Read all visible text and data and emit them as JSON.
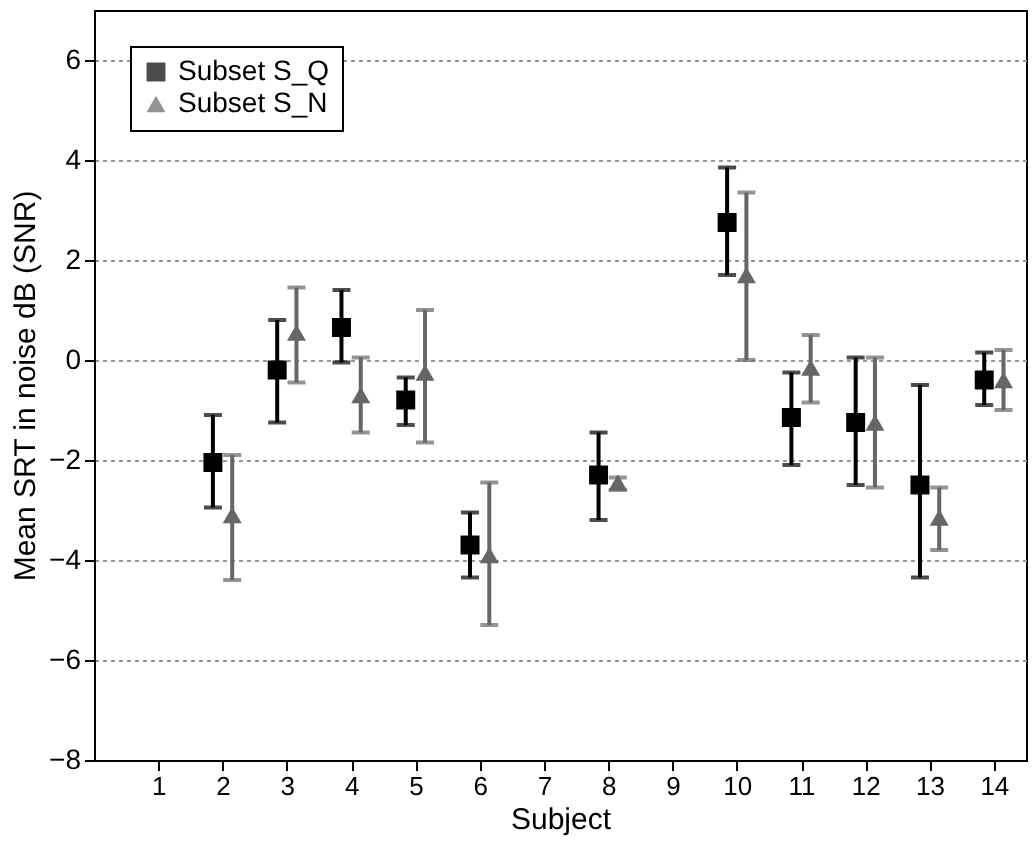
{
  "chart_data": {
    "type": "scatter",
    "xlabel": "Subject",
    "ylabel": "Mean SRT in noise dB (SNR)",
    "xlim": [
      0,
      14.5
    ],
    "xticks": [
      1,
      2,
      3,
      4,
      5,
      6,
      7,
      8,
      9,
      10,
      11,
      12,
      13,
      14
    ],
    "ylim": [
      -8,
      7
    ],
    "yticks": [
      -8,
      -6,
      -4,
      -2,
      0,
      2,
      4,
      6
    ],
    "grid": "y",
    "legend": "top left",
    "series": [
      {
        "name": "Subset S_Q",
        "color": "#000000",
        "marker": "square",
        "x": [
          1.85,
          2.85,
          3.85,
          4.85,
          5.85,
          7.85,
          9.85,
          10.85,
          11.85,
          12.85,
          13.85
        ],
        "values": [
          -2.05,
          -0.2,
          0.65,
          -0.8,
          -3.7,
          -2.3,
          2.75,
          -1.15,
          -1.25,
          -2.5,
          -0.4
        ],
        "errors": [
          [
            -2.95,
            -1.1
          ],
          [
            -1.25,
            0.8
          ],
          [
            -0.05,
            1.4
          ],
          [
            -1.3,
            -0.35
          ],
          [
            -4.35,
            -3.05
          ],
          [
            -3.2,
            -1.45
          ],
          [
            1.7,
            3.85
          ],
          [
            -2.1,
            -0.25
          ],
          [
            -2.5,
            0.05
          ],
          [
            -4.35,
            -0.5
          ],
          [
            -0.9,
            0.15
          ]
        ]
      },
      {
        "name": "Subset S_N",
        "color": "#666666",
        "marker": "triangle",
        "x": [
          2.15,
          3.15,
          4.15,
          5.15,
          6.15,
          8.15,
          10.15,
          11.15,
          12.15,
          13.15,
          14.15
        ],
        "values": [
          -3.1,
          0.55,
          -0.7,
          -0.25,
          -3.9,
          -2.45,
          1.7,
          -0.15,
          -1.25,
          -3.15,
          -0.4
        ],
        "errors": [
          [
            -4.4,
            -1.9
          ],
          [
            -0.45,
            1.45
          ],
          [
            -1.45,
            0.05
          ],
          [
            -1.65,
            1.0
          ],
          [
            -5.3,
            -2.45
          ],
          [
            -2.6,
            -2.35
          ],
          [
            0.0,
            3.35
          ],
          [
            -0.85,
            0.5
          ],
          [
            -2.55,
            0.05
          ],
          [
            -3.8,
            -2.55
          ],
          [
            -1.0,
            0.2
          ]
        ]
      }
    ]
  }
}
